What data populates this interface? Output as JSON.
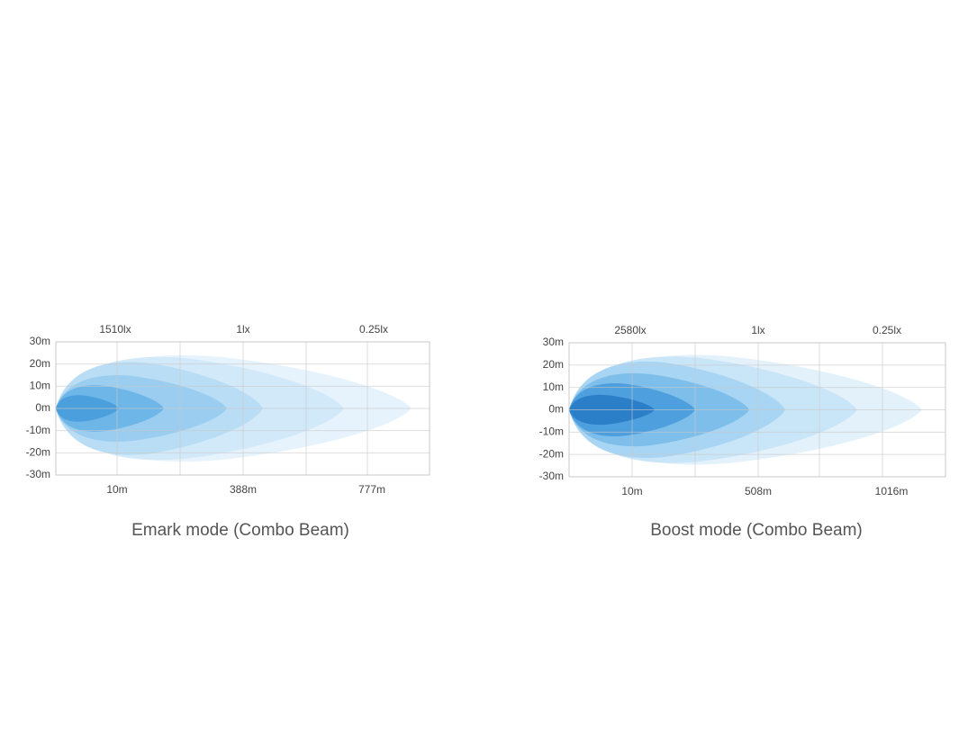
{
  "panels": [
    {
      "top_labels": [
        "1510lx",
        "1lx",
        "0.25lx"
      ],
      "y_labels": [
        "30m",
        "20m",
        "10m",
        "0m",
        "-10m",
        "-20m",
        "-30m"
      ],
      "x_labels": [
        "10m",
        "388m",
        "777m"
      ],
      "caption": "Emark mode (Combo Beam)"
    },
    {
      "top_labels": [
        "2580lx",
        "1lx",
        "0.25lx"
      ],
      "y_labels": [
        "30m",
        "20m",
        "10m",
        "0m",
        "-10m",
        "-20m",
        "-30m"
      ],
      "x_labels": [
        "10m",
        "508m",
        "1016m"
      ],
      "caption": "Boost mode (Combo Beam)"
    }
  ]
}
